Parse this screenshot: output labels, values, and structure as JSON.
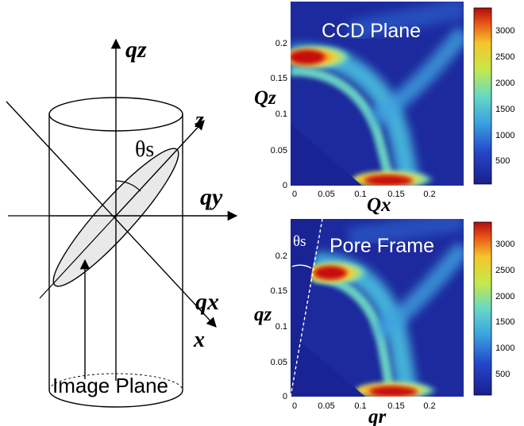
{
  "diagram": {
    "axis_labels": {
      "qz": "qz",
      "z": "z",
      "qy": "qy",
      "qx": "qx",
      "x": "x"
    },
    "angle_label": "θs",
    "caption": "Image Plane"
  },
  "panels": [
    {
      "title": "CCD Plane",
      "xlabel": "Qx",
      "ylabel": "Qz",
      "x_ticks": [
        "0",
        "0.05",
        "0.1",
        "0.15",
        "0.2"
      ],
      "y_ticks": [
        "0",
        "0.05",
        "0.1",
        "0.15",
        "0.2"
      ],
      "colorbar_ticks": [
        "500",
        "1000",
        "1500",
        "2000",
        "2500",
        "3000"
      ]
    },
    {
      "title": "Pore Frame",
      "xlabel": "qr",
      "ylabel": "qz",
      "angle_label": "θs",
      "x_ticks": [
        "0",
        "0.05",
        "0.1",
        "0.15",
        "0.2"
      ],
      "y_ticks": [
        "0",
        "0.05",
        "0.1",
        "0.15",
        "0.2"
      ],
      "colorbar_ticks": [
        "500",
        "1000",
        "1500",
        "2000",
        "2500",
        "3000"
      ]
    }
  ],
  "colors": {
    "low": "#1a1f8c",
    "mid": "#39c6c0",
    "high": "#cc1010"
  }
}
